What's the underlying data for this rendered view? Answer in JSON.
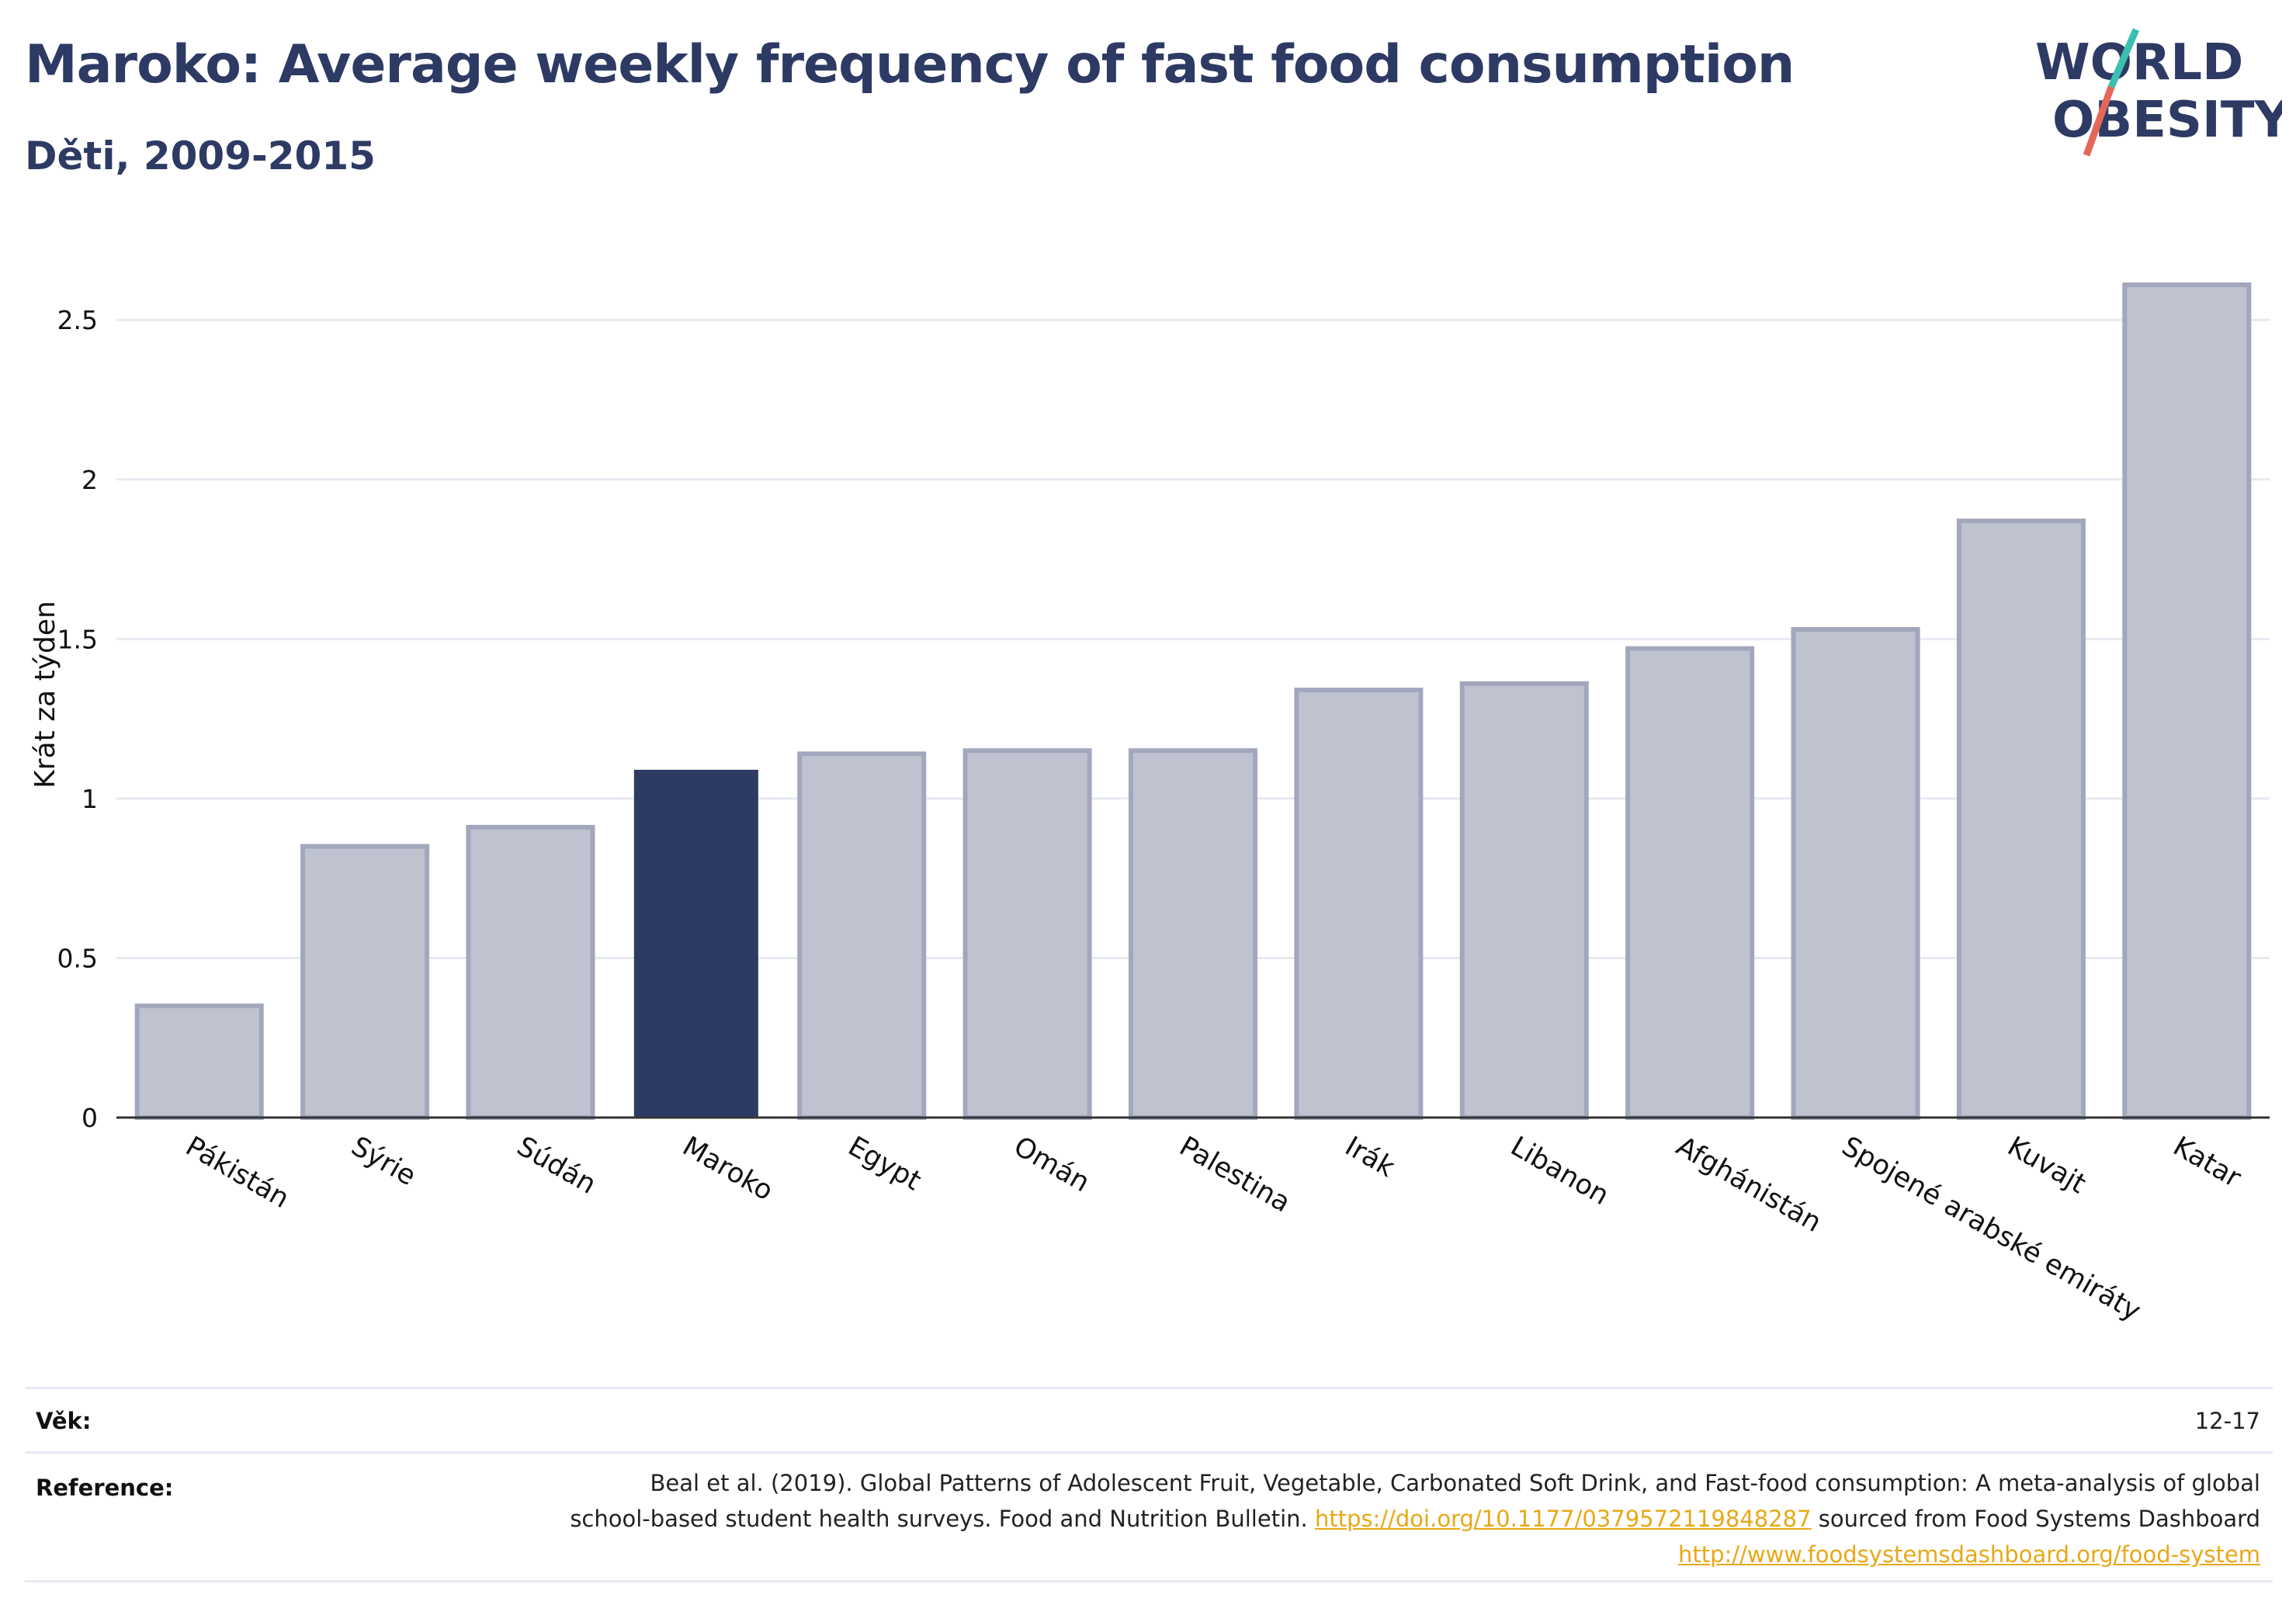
{
  "header": {
    "title": "Maroko: Average weekly frequency of fast food consumption",
    "subtitle": "Děti, 2009-2015"
  },
  "logo": {
    "line1": "WORLD",
    "line2": "OBESITY",
    "text_color": "#2d3a64",
    "slash_colors": [
      "#3bbfb0",
      "#e4675a"
    ]
  },
  "chart_data": {
    "type": "bar",
    "title": "",
    "xlabel": "",
    "ylabel": "Krát za týden",
    "ylim": [
      0,
      2.7
    ],
    "yticks": [
      0,
      0.5,
      1,
      1.5,
      2,
      2.5
    ],
    "ytick_labels": [
      "0",
      "0.5",
      "1",
      "1.5",
      "2",
      "2.5"
    ],
    "grid": true,
    "categories": [
      "Pákistán",
      "Sýrie",
      "Súdán",
      "Maroko",
      "Egypt",
      "Omán",
      "Palestina",
      "Irák",
      "Libanon",
      "Afghánistán",
      "Spojené arabské emiráty",
      "Kuvajt",
      "Katar"
    ],
    "values": [
      0.35,
      0.85,
      0.91,
      1.09,
      1.14,
      1.15,
      1.15,
      1.34,
      1.36,
      1.47,
      1.53,
      1.87,
      2.61
    ],
    "highlight": "Maroko",
    "colors": {
      "bar": "#bfc3d0",
      "bar_border": "#a2a7bd",
      "highlight": "#2d3a64",
      "grid": "#e8eaf2",
      "axis": "#333333"
    }
  },
  "meta": {
    "age_label": "Věk:",
    "age_value": "12-17",
    "reference_label": "Reference:",
    "reference_text": "Beal et al. (2019). Global Patterns of Adolescent Fruit, Vegetable, Carbonated Soft Drink, and Fast-food consumption: A meta-analysis of global school-based student health surveys. Food and Nutrition Bulletin.",
    "reference_link1": "https://doi.org/10.1177/0379572119848287",
    "reference_mid": "sourced from Food Systems Dashboard",
    "reference_link2": "http://www.foodsystemsdashboard.org/food-system"
  }
}
